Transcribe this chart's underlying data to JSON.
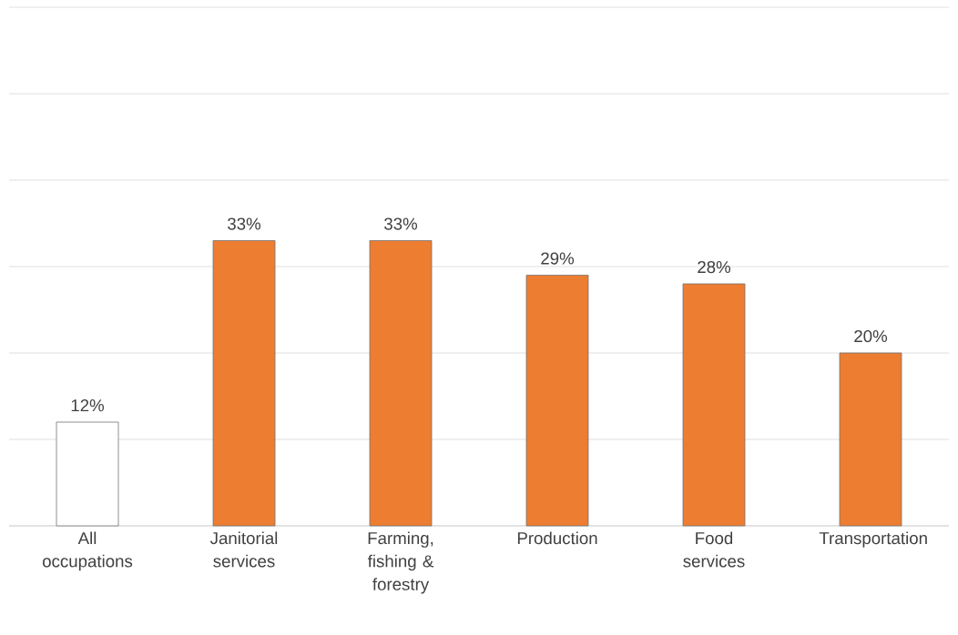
{
  "chart_data": {
    "type": "bar",
    "categories": [
      "All occupations",
      "Janitorial services",
      "Farming, fishing & forestry",
      "Production",
      "Food services",
      "Transportation"
    ],
    "values": [
      12,
      33,
      33,
      29,
      28,
      20
    ],
    "colors": [
      "#ffffff",
      "#ed7d31",
      "#ed7d31",
      "#ed7d31",
      "#ed7d31",
      "#ed7d31"
    ],
    "value_labels": [
      "12%",
      "33%",
      "33%",
      "29%",
      "28%",
      "20%"
    ],
    "ylim": [
      0,
      60
    ],
    "yticks": [
      {
        "value": 0,
        "label": null
      },
      {
        "value": 10,
        "label": null
      },
      {
        "value": 20,
        "label": null
      },
      {
        "value": 30,
        "label": null
      },
      {
        "value": 40,
        "label": null
      },
      {
        "value": 50,
        "label": null
      },
      {
        "value": 60,
        "label": null
      }
    ],
    "tick_labels": "x",
    "grid": "y"
  }
}
